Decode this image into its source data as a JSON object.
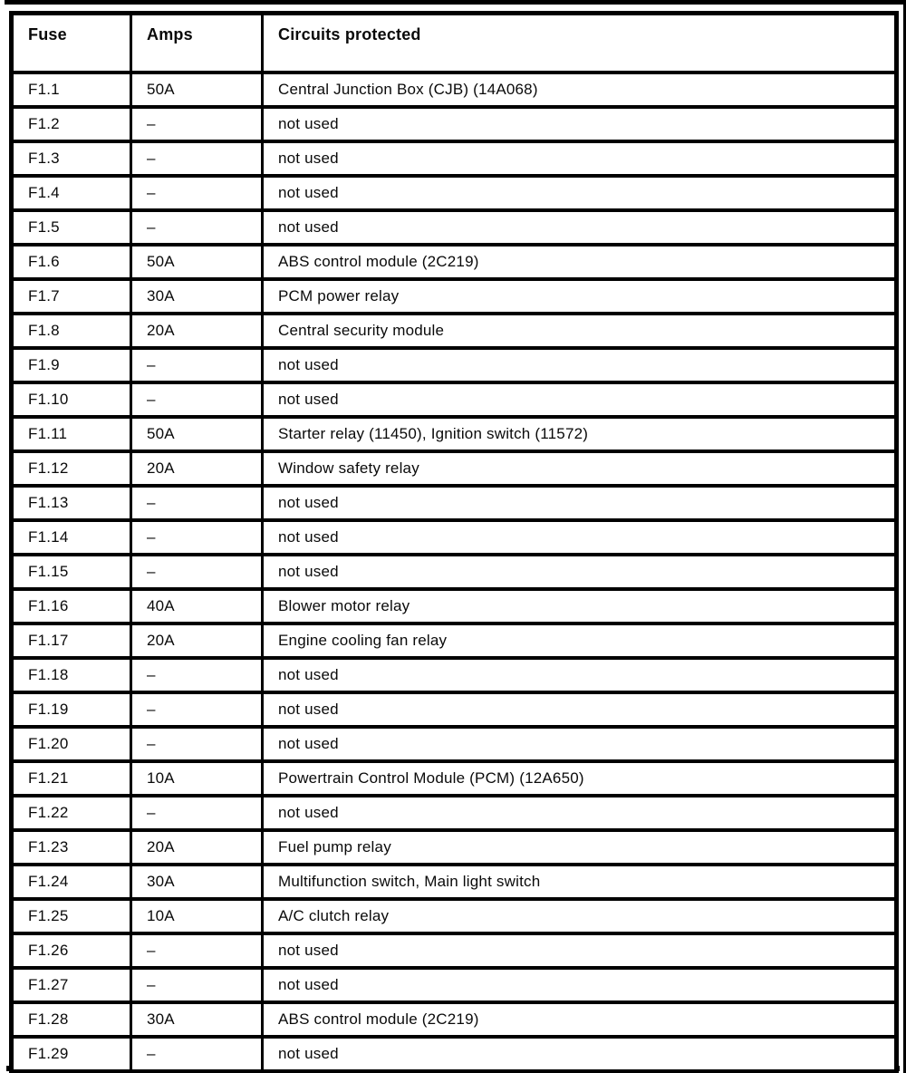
{
  "page": {
    "background_color": "#ffffff",
    "ink_color": "#000000",
    "kind": "scanned fuse box table"
  },
  "table": {
    "columns": [
      {
        "key": "fuse",
        "label": "Fuse"
      },
      {
        "key": "amps",
        "label": "Amps"
      },
      {
        "key": "circuits",
        "label": "Circuits protected"
      }
    ],
    "rows": [
      {
        "fuse": "F1.1",
        "amps": "50A",
        "circuits": "Central Junction Box (CJB) (14A068)"
      },
      {
        "fuse": "F1.2",
        "amps": "–",
        "circuits": "not used"
      },
      {
        "fuse": "F1.3",
        "amps": "–",
        "circuits": "not used"
      },
      {
        "fuse": "F1.4",
        "amps": "–",
        "circuits": "not used"
      },
      {
        "fuse": "F1.5",
        "amps": "–",
        "circuits": "not used"
      },
      {
        "fuse": "F1.6",
        "amps": "50A",
        "circuits": "ABS control module (2C219)"
      },
      {
        "fuse": "F1.7",
        "amps": "30A",
        "circuits": "PCM power relay"
      },
      {
        "fuse": "F1.8",
        "amps": "20A",
        "circuits": "Central security module"
      },
      {
        "fuse": "F1.9",
        "amps": "–",
        "circuits": "not used"
      },
      {
        "fuse": "F1.10",
        "amps": "–",
        "circuits": "not used"
      },
      {
        "fuse": "F1.11",
        "amps": "50A",
        "circuits": "Starter relay (11450), Ignition switch (11572)"
      },
      {
        "fuse": "F1.12",
        "amps": "20A",
        "circuits": "Window safety relay"
      },
      {
        "fuse": "F1.13",
        "amps": "–",
        "circuits": "not used"
      },
      {
        "fuse": "F1.14",
        "amps": "–",
        "circuits": "not used"
      },
      {
        "fuse": "F1.15",
        "amps": "–",
        "circuits": "not used"
      },
      {
        "fuse": "F1.16",
        "amps": "40A",
        "circuits": "Blower motor relay"
      },
      {
        "fuse": "F1.17",
        "amps": "20A",
        "circuits": "Engine cooling fan relay"
      },
      {
        "fuse": "F1.18",
        "amps": "–",
        "circuits": "not used"
      },
      {
        "fuse": "F1.19",
        "amps": "–",
        "circuits": "not used"
      },
      {
        "fuse": "F1.20",
        "amps": "–",
        "circuits": "not used"
      },
      {
        "fuse": "F1.21",
        "amps": "10A",
        "circuits": "Powertrain Control Module (PCM) (12A650)"
      },
      {
        "fuse": "F1.22",
        "amps": "–",
        "circuits": "not used"
      },
      {
        "fuse": "F1.23",
        "amps": "20A",
        "circuits": "Fuel pump relay"
      },
      {
        "fuse": "F1.24",
        "amps": "30A",
        "circuits": "Multifunction switch, Main light switch"
      },
      {
        "fuse": "F1.25",
        "amps": "10A",
        "circuits": "A/C clutch relay"
      },
      {
        "fuse": "F1.26",
        "amps": "–",
        "circuits": "not used"
      },
      {
        "fuse": "F1.27",
        "amps": "–",
        "circuits": "not used"
      },
      {
        "fuse": "F1.28",
        "amps": "30A",
        "circuits": "ABS control module (2C219)"
      },
      {
        "fuse": "F1.29",
        "amps": "–",
        "circuits": "not used"
      }
    ]
  }
}
